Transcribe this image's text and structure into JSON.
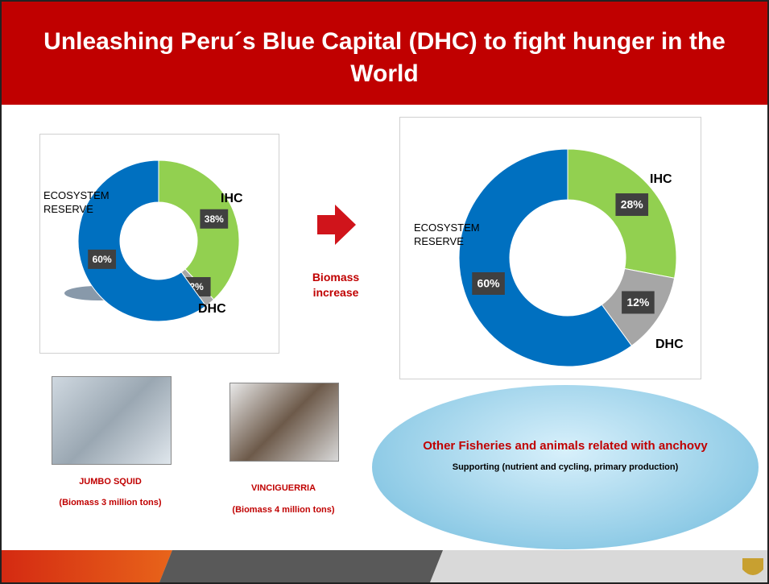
{
  "header": {
    "title": "Unleashing Peru´s Blue Capital (DHC) to fight hunger in the World"
  },
  "chart_data": [
    {
      "type": "donut",
      "categories": [
        "IHC",
        "DHC",
        "ECOSYSTEM RESERVE"
      ],
      "values": [
        38,
        2,
        60
      ],
      "value_labels": [
        "38%",
        "2%",
        "60%"
      ],
      "colors": [
        "#92d050",
        "#a6a6a6",
        "#0070c0"
      ]
    },
    {
      "type": "donut",
      "categories": [
        "IHC",
        "DHC",
        "ECOSYSTEM RESERVE"
      ],
      "values": [
        28,
        12,
        60
      ],
      "value_labels": [
        "28%",
        "12%",
        "60%"
      ],
      "colors": [
        "#92d050",
        "#a6a6a6",
        "#0070c0"
      ]
    }
  ],
  "arrow_label": "Biomass increase",
  "images": [
    {
      "title": "JUMBO SQUID",
      "caption": "(Biomass 3 million tons)"
    },
    {
      "title": "VINCIGUERRIA",
      "caption": "(Biomass 4 million tons)"
    }
  ],
  "ecosystem": {
    "title": "Other Fisheries and animals related with anchovy",
    "subtitle": "Supporting (nutrient  and cycling, primary production)"
  }
}
